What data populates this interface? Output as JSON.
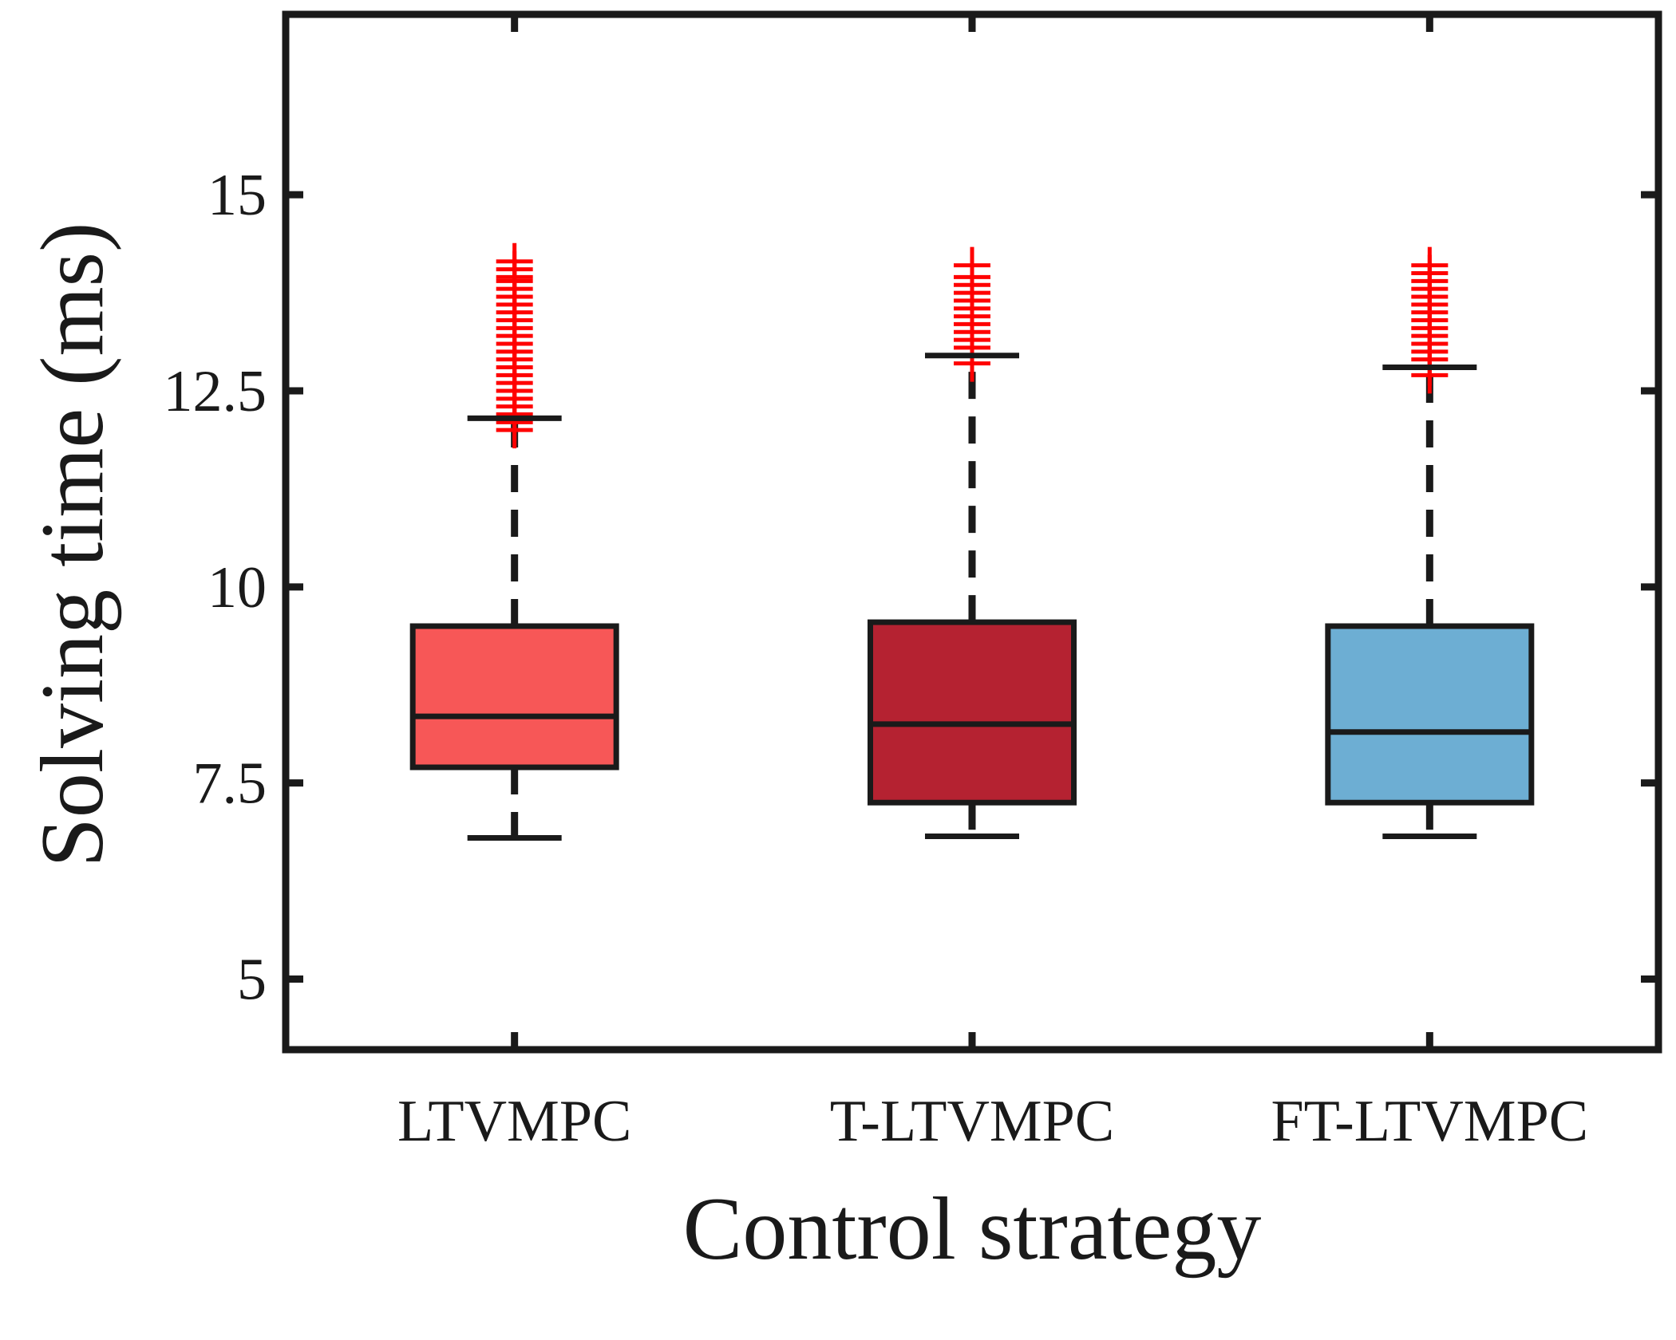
{
  "chart_data": {
    "type": "box",
    "title": "",
    "xlabel": "Control strategy",
    "ylabel": "Solving time (ms)",
    "ylim": [
      4.1,
      17.3
    ],
    "yticks": [
      5,
      7.5,
      10,
      12.5,
      15
    ],
    "ytick_labels": [
      "5",
      "7.5",
      "10",
      "12.5",
      "15"
    ],
    "grid": false,
    "categories": [
      "LTVMPC",
      "T-LTVMPC",
      "FT-LTVMPC"
    ],
    "series": [
      {
        "name": "LTVMPC",
        "color": "#f75757",
        "whisker_low": 6.8,
        "q1": 7.7,
        "median": 8.35,
        "q3": 9.5,
        "whisker_high": 12.15,
        "outliers": [
          12.0,
          12.1,
          12.2,
          12.3,
          12.4,
          12.5,
          12.6,
          12.7,
          12.8,
          12.9,
          13.0,
          13.1,
          13.2,
          13.3,
          13.4,
          13.5,
          13.6,
          13.7,
          13.8,
          13.9,
          13.95,
          14.05,
          14.15
        ]
      },
      {
        "name": "T-LTVMPC",
        "color": "#b52231",
        "whisker_low": 6.82,
        "q1": 7.25,
        "median": 8.25,
        "q3": 9.55,
        "whisker_high": 12.95,
        "outliers": [
          12.85,
          12.95,
          13.05,
          13.15,
          13.25,
          13.35,
          13.45,
          13.55,
          13.65,
          13.75,
          13.85,
          13.95,
          14.1
        ]
      },
      {
        "name": "FT-LTVMPC",
        "color": "#6daed3",
        "whisker_low": 6.82,
        "q1": 7.25,
        "median": 8.15,
        "q3": 9.5,
        "whisker_high": 12.8,
        "outliers": [
          12.7,
          12.8,
          12.9,
          13.0,
          13.1,
          13.2,
          13.3,
          13.4,
          13.5,
          13.6,
          13.7,
          13.8,
          13.9,
          14.0,
          14.1
        ]
      }
    ],
    "outlier_marker": "+",
    "outlier_color": "#ff0000"
  }
}
